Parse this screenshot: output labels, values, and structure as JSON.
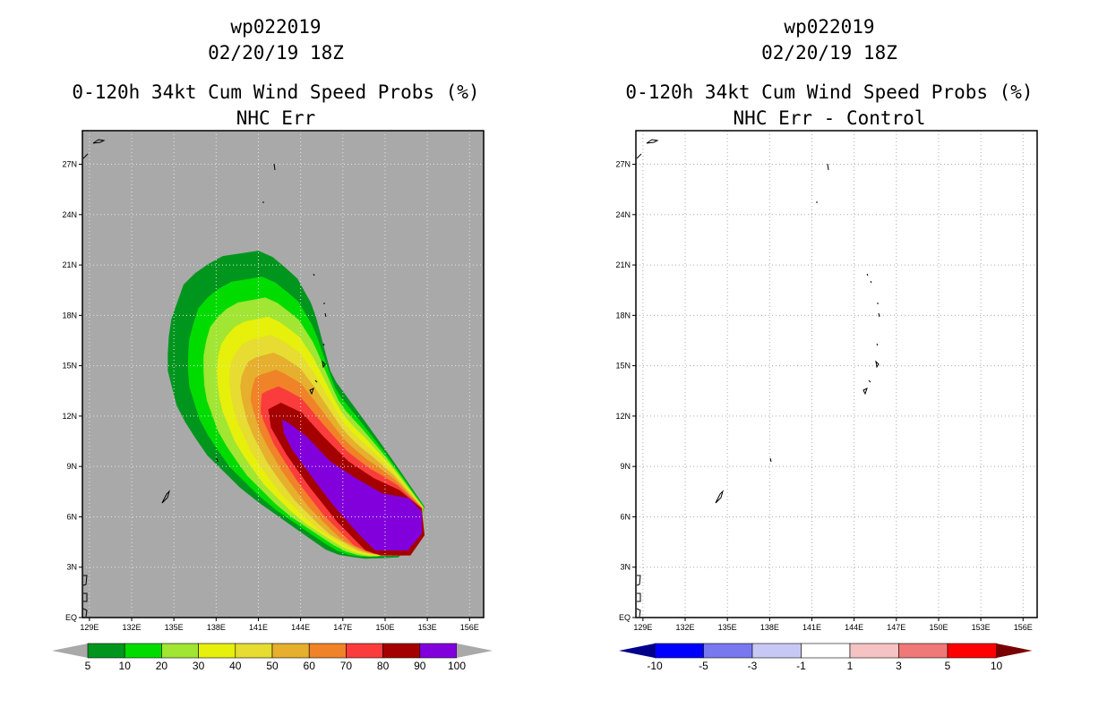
{
  "colors": {
    "land_gray": "#a9a9a9",
    "prob_levels": [
      "#00961e",
      "#00dc00",
      "#a0e632",
      "#e6f00a",
      "#e6dc32",
      "#e6af2d",
      "#f08228",
      "#fa3c3c",
      "#a50000",
      "#8200dc"
    ],
    "diff_levels": [
      "#00008b",
      "#0000ff",
      "#7878f0",
      "#c8c8f5",
      "#ffffff",
      "#f5c3c3",
      "#f07878",
      "#ff0000",
      "#780000"
    ]
  },
  "chart_data": [
    {
      "type": "contour-map",
      "storm_id": "wp022019",
      "datetime": "02/20/19 18Z",
      "title": "0-120h 34kt Cum Wind Speed Probs (%)",
      "subtitle": "NHC Err",
      "lon_range": [
        128.5,
        157.0
      ],
      "lat_range": [
        0,
        29
      ],
      "x_ticks": [
        "129E",
        "132E",
        "135E",
        "138E",
        "141E",
        "144E",
        "147E",
        "150E",
        "153E",
        "156E"
      ],
      "y_ticks": [
        "EQ",
        "3N",
        "6N",
        "9N",
        "12N",
        "15N",
        "18N",
        "21N",
        "24N",
        "27N"
      ],
      "grid": true,
      "colorbar_labels": [
        "5",
        "10",
        "20",
        "30",
        "40",
        "50",
        "60",
        "70",
        "80",
        "90",
        "100"
      ],
      "probability_contours_pct": [
        5,
        10,
        20,
        30,
        40,
        50,
        60,
        70,
        80,
        90
      ],
      "track_axis_lon_lat": [
        [
          151.7,
          5.1
        ],
        [
          149.5,
          7.0
        ],
        [
          146.8,
          8.8
        ],
        [
          144.5,
          10.6
        ],
        [
          143.0,
          12.5
        ],
        [
          141.8,
          14.6
        ],
        [
          140.8,
          17.0
        ],
        [
          140.2,
          19.5
        ]
      ]
    },
    {
      "type": "difference-map",
      "storm_id": "wp022019",
      "datetime": "02/20/19 18Z",
      "title": "0-120h 34kt Cum Wind Speed Probs (%)",
      "subtitle": "NHC Err - Control",
      "lon_range": [
        128.5,
        157.0
      ],
      "lat_range": [
        0,
        29
      ],
      "x_ticks": [
        "129E",
        "132E",
        "135E",
        "138E",
        "141E",
        "144E",
        "147E",
        "150E",
        "153E",
        "156E"
      ],
      "y_ticks": [
        "EQ",
        "3N",
        "6N",
        "9N",
        "12N",
        "15N",
        "18N",
        "21N",
        "24N",
        "27N"
      ],
      "grid": true,
      "colorbar_labels": [
        "-10",
        "-5",
        "-3",
        "-1",
        "1",
        "3",
        "5",
        "10"
      ],
      "difference_values": "all within -1 to 1 (no shading)"
    }
  ],
  "left": {
    "line1": "wp022019",
    "line2": "02/20/19 18Z",
    "line3": "0-120h 34kt Cum Wind Speed Probs (%)",
    "line4": "NHC Err"
  },
  "right": {
    "line1": "wp022019",
    "line2": "02/20/19 18Z",
    "line3": "0-120h 34kt Cum Wind Speed Probs (%)",
    "line4": "NHC Err - Control"
  }
}
